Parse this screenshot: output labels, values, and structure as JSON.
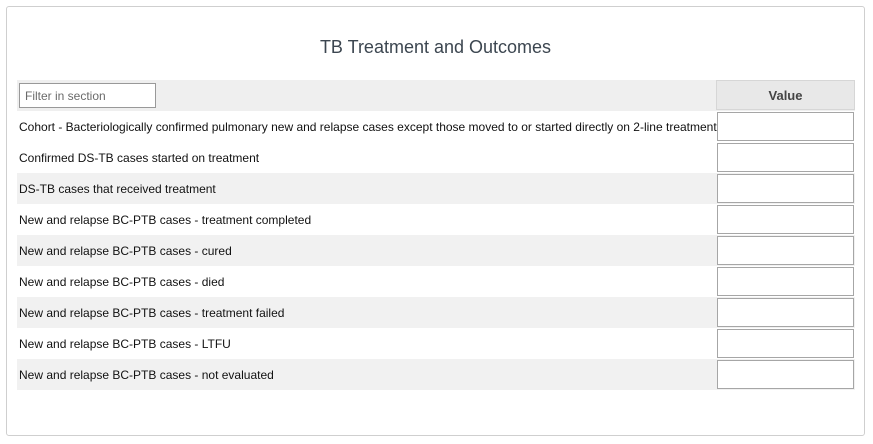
{
  "section": {
    "title": "TB Treatment and Outcomes",
    "filter_placeholder": "Filter in section",
    "value_header": "Value"
  },
  "rows": [
    {
      "label": "Cohort - Bacteriologically confirmed pulmonary new and relapse cases except those moved to or started directly on 2-line treatment",
      "value": ""
    },
    {
      "label": "Confirmed DS-TB cases started on treatment",
      "value": ""
    },
    {
      "label": "DS-TB cases that received treatment",
      "value": ""
    },
    {
      "label": "New and relapse BC-PTB cases - treatment completed",
      "value": ""
    },
    {
      "label": "New and relapse BC-PTB cases - cured",
      "value": ""
    },
    {
      "label": "New and relapse BC-PTB cases - died",
      "value": ""
    },
    {
      "label": "New and relapse BC-PTB cases - treatment failed",
      "value": ""
    },
    {
      "label": "New and relapse BC-PTB cases - LTFU",
      "value": ""
    },
    {
      "label": "New and relapse BC-PTB cases - not evaluated",
      "value": ""
    }
  ]
}
